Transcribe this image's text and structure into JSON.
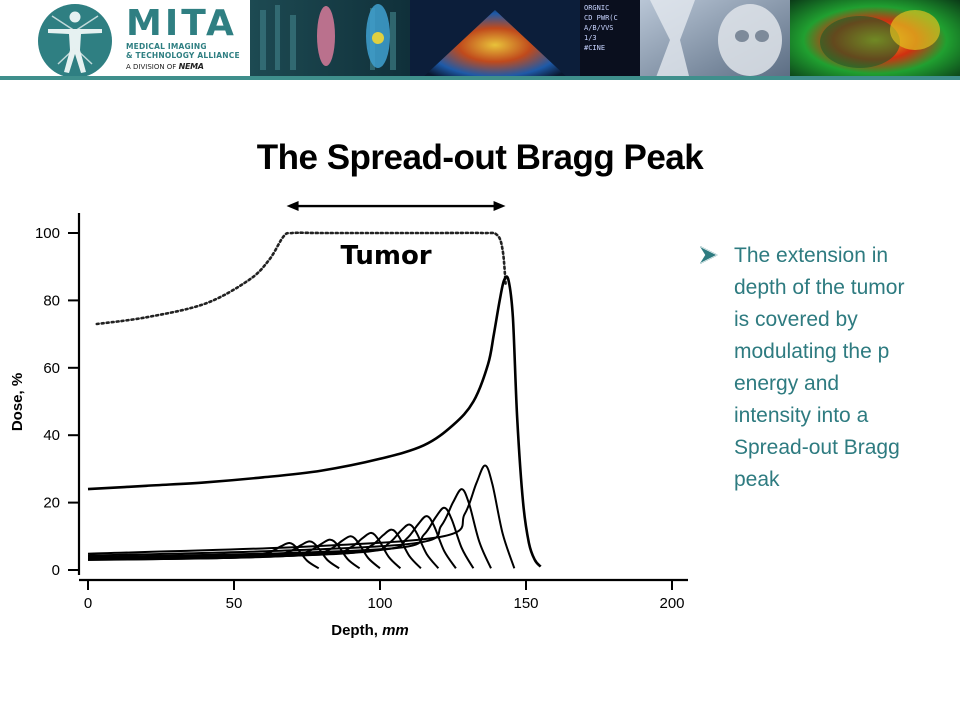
{
  "banner": {
    "brand_name": "MITA",
    "brand_line1": "MEDICAL IMAGING",
    "brand_line2": "& TECHNOLOGY ALLIANCE",
    "division_prefix": "A DIVISION OF",
    "division_name": "NEMA",
    "strip_overlay_text": "ORGNIC\nCD PWR(C\nA/B/VVS\n1/3\n#CINE",
    "colors": {
      "brand_teal": "#2f7f82",
      "bar_teal": "#3f8f8c"
    }
  },
  "slide": {
    "title": "The Spread-out Bragg Peak",
    "bullet_icon": "arrow-bullet-icon",
    "bullet_text": "The extension in depth of the tumor is covered by modulating the p energy and intensity into a Spread-out Bragg peak",
    "text_color": "#2e7b80"
  },
  "chart_data": {
    "type": "line",
    "title": "",
    "xlabel": "Depth,",
    "xlabel_italic": "mm",
    "ylabel": "Dose, %",
    "xlim": [
      0,
      200
    ],
    "ylim": [
      0,
      100
    ],
    "xticks": [
      "0",
      "50",
      "100",
      "150",
      "200"
    ],
    "yticks": [
      "0",
      "20",
      "40",
      "60",
      "80",
      "100"
    ],
    "xtick_values": [
      0,
      50,
      100,
      150,
      200
    ],
    "ytick_values": [
      0,
      20,
      40,
      60,
      80,
      100
    ],
    "grid": false,
    "legend": "none",
    "annotation": {
      "text": "Tumor",
      "span_x": [
        68,
        143
      ],
      "arrow_y": 108
    },
    "sobp": {
      "style": "dotted",
      "x": [
        3,
        20,
        40,
        55,
        62,
        67,
        70,
        80,
        100,
        120,
        135,
        140,
        142,
        143
      ],
      "y": [
        73,
        75,
        79,
        86,
        92,
        99,
        100,
        100,
        100,
        100,
        100,
        99.5,
        95,
        85
      ]
    },
    "pristine_peak": {
      "x": [
        0,
        20,
        40,
        60,
        80,
        100,
        115,
        125,
        132,
        137,
        139,
        141,
        142.5,
        144,
        145.5,
        147,
        149,
        151,
        153,
        155
      ],
      "y": [
        24,
        25,
        26,
        27.5,
        29.5,
        33,
        37,
        43,
        50,
        61,
        70,
        80,
        86,
        86,
        75,
        45,
        20,
        8,
        3,
        1
      ]
    },
    "modulated_peaks": [
      {
        "peak_x": 69,
        "peak_y": 8
      },
      {
        "peak_x": 76,
        "peak_y": 8.5
      },
      {
        "peak_x": 83,
        "peak_y": 9
      },
      {
        "peak_x": 90,
        "peak_y": 10
      },
      {
        "peak_x": 97,
        "peak_y": 11
      },
      {
        "peak_x": 104,
        "peak_y": 12
      },
      {
        "peak_x": 110,
        "peak_y": 13.5
      },
      {
        "peak_x": 116,
        "peak_y": 16
      },
      {
        "peak_x": 122,
        "peak_y": 18.5
      },
      {
        "peak_x": 128,
        "peak_y": 24
      },
      {
        "peak_x": 136,
        "peak_y": 31
      }
    ]
  }
}
